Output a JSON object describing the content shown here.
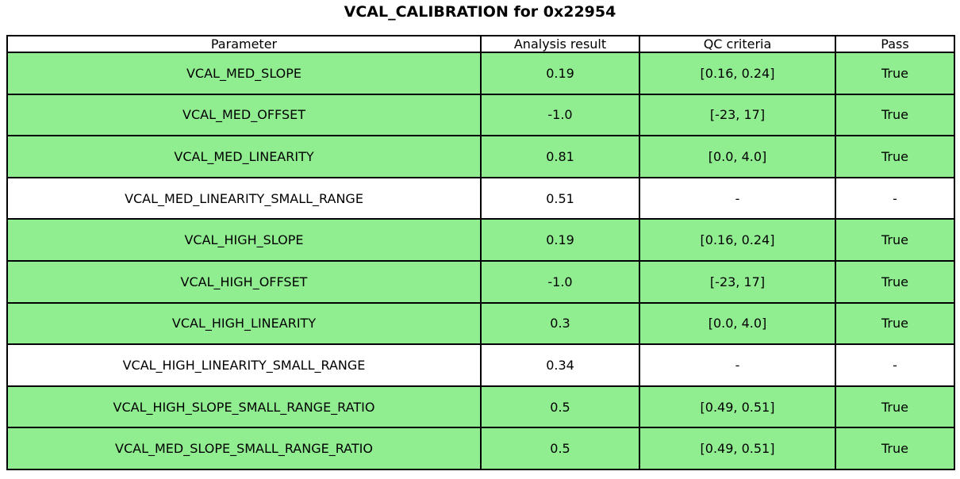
{
  "title": "VCAL_CALIBRATION for 0x22954",
  "colors": {
    "pass_green": "#90EE90",
    "plain_white": "#FFFFFF",
    "border": "#000000",
    "text": "#000000"
  },
  "table": {
    "headers": {
      "parameter": "Parameter",
      "result": "Analysis result",
      "criteria": "QC criteria",
      "pass": "Pass"
    },
    "rows": [
      {
        "parameter": "VCAL_MED_SLOPE",
        "result": "0.19",
        "criteria": "[0.16, 0.24]",
        "pass": "True",
        "highlight": true
      },
      {
        "parameter": "VCAL_MED_OFFSET",
        "result": "-1.0",
        "criteria": "[-23, 17]",
        "pass": "True",
        "highlight": true
      },
      {
        "parameter": "VCAL_MED_LINEARITY",
        "result": "0.81",
        "criteria": "[0.0, 4.0]",
        "pass": "True",
        "highlight": true
      },
      {
        "parameter": "VCAL_MED_LINEARITY_SMALL_RANGE",
        "result": "0.51",
        "criteria": "-",
        "pass": "-",
        "highlight": false
      },
      {
        "parameter": "VCAL_HIGH_SLOPE",
        "result": "0.19",
        "criteria": "[0.16, 0.24]",
        "pass": "True",
        "highlight": true
      },
      {
        "parameter": "VCAL_HIGH_OFFSET",
        "result": "-1.0",
        "criteria": "[-23, 17]",
        "pass": "True",
        "highlight": true
      },
      {
        "parameter": "VCAL_HIGH_LINEARITY",
        "result": "0.3",
        "criteria": "[0.0, 4.0]",
        "pass": "True",
        "highlight": true
      },
      {
        "parameter": "VCAL_HIGH_LINEARITY_SMALL_RANGE",
        "result": "0.34",
        "criteria": "-",
        "pass": "-",
        "highlight": false
      },
      {
        "parameter": "VCAL_HIGH_SLOPE_SMALL_RANGE_RATIO",
        "result": "0.5",
        "criteria": "[0.49, 0.51]",
        "pass": "True",
        "highlight": true
      },
      {
        "parameter": "VCAL_MED_SLOPE_SMALL_RANGE_RATIO",
        "result": "0.5",
        "criteria": "[0.49, 0.51]",
        "pass": "True",
        "highlight": true
      }
    ]
  },
  "chart_data": {
    "type": "table",
    "title": "VCAL_CALIBRATION for 0x22954",
    "columns": [
      "Parameter",
      "Analysis result",
      "QC criteria",
      "Pass"
    ],
    "rows": [
      [
        "VCAL_MED_SLOPE",
        "0.19",
        "[0.16, 0.24]",
        "True"
      ],
      [
        "VCAL_MED_OFFSET",
        "-1.0",
        "[-23, 17]",
        "True"
      ],
      [
        "VCAL_MED_LINEARITY",
        "0.81",
        "[0.0, 4.0]",
        "True"
      ],
      [
        "VCAL_MED_LINEARITY_SMALL_RANGE",
        "0.51",
        "-",
        "-"
      ],
      [
        "VCAL_HIGH_SLOPE",
        "0.19",
        "[0.16, 0.24]",
        "True"
      ],
      [
        "VCAL_HIGH_OFFSET",
        "-1.0",
        "[-23, 17]",
        "True"
      ],
      [
        "VCAL_HIGH_LINEARITY",
        "0.3",
        "[0.0, 4.0]",
        "True"
      ],
      [
        "VCAL_HIGH_LINEARITY_SMALL_RANGE",
        "0.34",
        "-",
        "-"
      ],
      [
        "VCAL_HIGH_SLOPE_SMALL_RANGE_RATIO",
        "0.5",
        "[0.49, 0.51]",
        "True"
      ],
      [
        "VCAL_MED_SLOPE_SMALL_RANGE_RATIO",
        "0.5",
        "[0.49, 0.51]",
        "True"
      ]
    ],
    "row_highlight_green": [
      true,
      true,
      true,
      false,
      true,
      true,
      true,
      false,
      true,
      true
    ],
    "layout": {
      "grid": true,
      "header_background": "#FFFFFF",
      "pass_row_background": "#90EE90"
    }
  }
}
